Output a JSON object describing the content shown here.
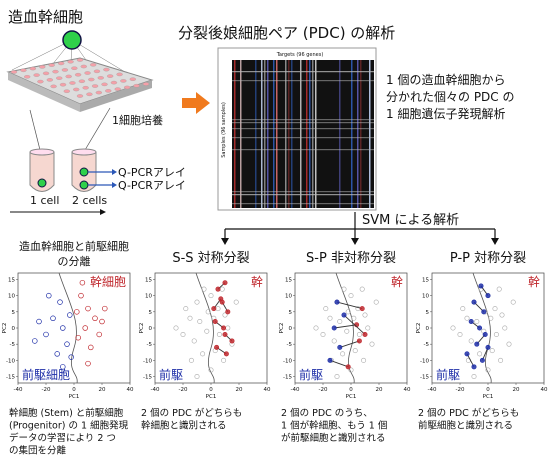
{
  "header": {
    "hsc": "造血幹細胞",
    "culture": "1細胞培養",
    "one_cell": "1 cell",
    "two_cells": "2 cells",
    "qpcr": [
      "Q-PCRアレイ",
      "Q-PCRアレイ"
    ],
    "title": "分裂後娘細胞ペア (PDC) の解析",
    "heatmap_x": "Targets (96 genes)",
    "heatmap_y": "Samples (96 samples)",
    "desc": [
      "1 個の造血幹細胞から",
      "分かれた個々の PDC の",
      "1 細胞遺伝子発現解析"
    ],
    "svm": "SVM による解析"
  },
  "axes": {
    "xlim": [
      -40,
      40
    ],
    "ylim": [
      -17,
      17
    ],
    "xticks": [
      -40,
      -20,
      0,
      20,
      40
    ],
    "yticks": [
      -15,
      -10,
      -5,
      0,
      5,
      10,
      15
    ],
    "xlabel": "PC1",
    "ylabel": "PC2"
  },
  "gray": [
    [
      -10,
      8
    ],
    [
      -5,
      12
    ],
    [
      0,
      10
    ],
    [
      5,
      6
    ],
    [
      -15,
      3
    ],
    [
      -8,
      2
    ],
    [
      2,
      3
    ],
    [
      10,
      4
    ],
    [
      -20,
      -2
    ],
    [
      -12,
      -4
    ],
    [
      -3,
      -1
    ],
    [
      6,
      -2
    ],
    [
      12,
      0
    ],
    [
      -18,
      6
    ],
    [
      -6,
      -8
    ],
    [
      3,
      -7
    ],
    [
      9,
      -10
    ],
    [
      -14,
      -10
    ],
    [
      0,
      -13
    ],
    [
      15,
      -5
    ],
    [
      -25,
      0
    ],
    [
      18,
      8
    ],
    [
      -2,
      5
    ],
    [
      8,
      12
    ],
    [
      -10,
      -15
    ]
  ],
  "panels": [
    {
      "title": [
        "造血幹細胞と前駆細胞",
        "の分離"
      ],
      "top_label": "幹細胞",
      "bottom_label": "前駆細胞",
      "red": [
        [
          5,
          10
        ],
        [
          10,
          6
        ],
        [
          15,
          3
        ],
        [
          8,
          0
        ],
        [
          3,
          -3
        ],
        [
          12,
          -6
        ],
        [
          20,
          2
        ],
        [
          6,
          14
        ],
        [
          18,
          -2
        ],
        [
          2,
          5
        ],
        [
          10,
          -11
        ],
        [
          22,
          6
        ]
      ],
      "blue": [
        [
          -10,
          8
        ],
        [
          -15,
          3
        ],
        [
          -20,
          -2
        ],
        [
          -8,
          0
        ],
        [
          -5,
          -5
        ],
        [
          -12,
          -8
        ],
        [
          -25,
          2
        ],
        [
          -18,
          10
        ],
        [
          -3,
          4
        ],
        [
          -8,
          -12
        ],
        [
          -28,
          -4
        ],
        [
          -2,
          -9
        ]
      ],
      "caption": [
        "幹細胞 (Stem) と前駆細胞",
        "(Progenitor) の 1 細胞発現",
        "データの学習により 2 つ",
        "の集団を分離"
      ]
    },
    {
      "title": [
        "S-S 対称分裂"
      ],
      "top_label": "幹",
      "bottom_label": "前駆",
      "pair_colors": [
        "#c0282e",
        "#c0282e"
      ],
      "pairs": [
        [
          [
            5,
            12
          ],
          [
            10,
            14
          ]
        ],
        [
          [
            8,
            8
          ],
          [
            12,
            5
          ]
        ],
        [
          [
            3,
            2
          ],
          [
            9,
            0
          ]
        ],
        [
          [
            10,
            -2
          ],
          [
            15,
            -4
          ]
        ],
        [
          [
            4,
            -6
          ],
          [
            11,
            -8
          ]
        ],
        [
          [
            7,
            9
          ],
          [
            2,
            6
          ]
        ]
      ],
      "caption": [
        "2 個の PDC がどちらも",
        "幹細胞と識別される"
      ]
    },
    {
      "title": [
        "S-P 非対称分裂"
      ],
      "top_label": "幹",
      "bottom_label": "前駆",
      "pair_colors": [
        "#1f2fa8",
        "#c0282e"
      ],
      "pairs": [
        [
          [
            -10,
            8
          ],
          [
            8,
            6
          ]
        ],
        [
          [
            -12,
            0
          ],
          [
            4,
            1
          ]
        ],
        [
          [
            -8,
            -6
          ],
          [
            6,
            -4
          ]
        ],
        [
          [
            -15,
            -10
          ],
          [
            -2,
            -12
          ]
        ],
        [
          [
            -5,
            4
          ],
          [
            10,
            -2
          ]
        ]
      ],
      "caption": [
        "2 個の PDC のうち、",
        "1 個が幹細胞、もう 1 個",
        "が前駆細胞と識別される"
      ]
    },
    {
      "title": [
        "P-P 対称分裂"
      ],
      "top_label": "幹",
      "bottom_label": "前駆",
      "pair_colors": [
        "#1f2fa8",
        "#1f2fa8"
      ],
      "pairs": [
        [
          [
            -5,
            13
          ],
          [
            0,
            10
          ]
        ],
        [
          [
            -10,
            8
          ],
          [
            -3,
            5
          ]
        ],
        [
          [
            -12,
            2
          ],
          [
            -6,
            0
          ]
        ],
        [
          [
            -2,
            -2
          ],
          [
            -8,
            -5
          ]
        ],
        [
          [
            -15,
            -8
          ],
          [
            -10,
            -12
          ]
        ],
        [
          [
            0,
            -6
          ],
          [
            -4,
            -10
          ]
        ]
      ],
      "caption": [
        "2 個の PDC がどちらも",
        "前駆細胞と識別される"
      ]
    }
  ]
}
